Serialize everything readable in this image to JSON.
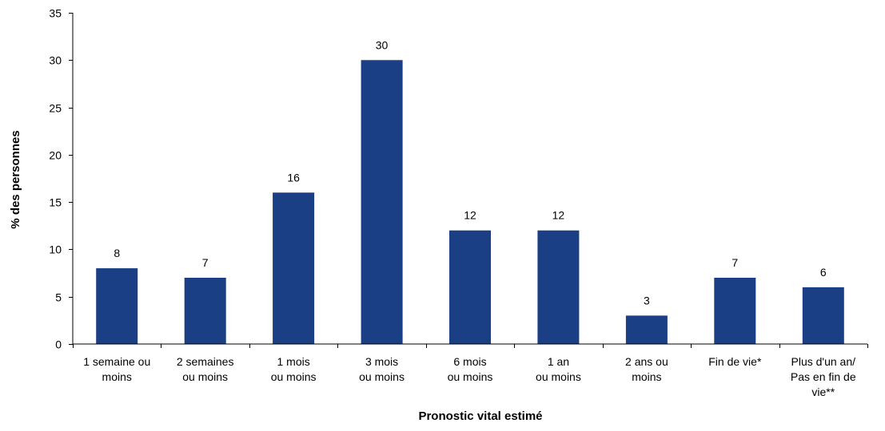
{
  "chart_data": {
    "type": "bar",
    "categories": [
      [
        "1 semaine ou",
        "moins"
      ],
      [
        "2 semaines",
        "ou moins"
      ],
      [
        "1 mois",
        "ou moins"
      ],
      [
        "3 mois",
        "ou moins"
      ],
      [
        "6 mois",
        "ou moins"
      ],
      [
        "1 an",
        "ou moins"
      ],
      [
        "2 ans ou",
        "moins"
      ],
      [
        "Fin de vie*"
      ],
      [
        "Plus d'un an/",
        "Pas en fin de",
        "vie**"
      ]
    ],
    "values": [
      8,
      7,
      16,
      30,
      12,
      12,
      3,
      7,
      6
    ],
    "data_labels": [
      "8",
      "7",
      "16",
      "30",
      "12",
      "12",
      "3",
      "7",
      "6"
    ],
    "xlabel": "Pronostic vital estimé",
    "ylabel": "% des personnes",
    "ylim": [
      0,
      35
    ],
    "yticks": [
      0,
      5,
      10,
      15,
      20,
      25,
      30,
      35
    ],
    "grid": false,
    "legend": "none",
    "colors": {
      "bar": "#1b3f84",
      "axis": "#000000",
      "text": "#000000"
    }
  }
}
